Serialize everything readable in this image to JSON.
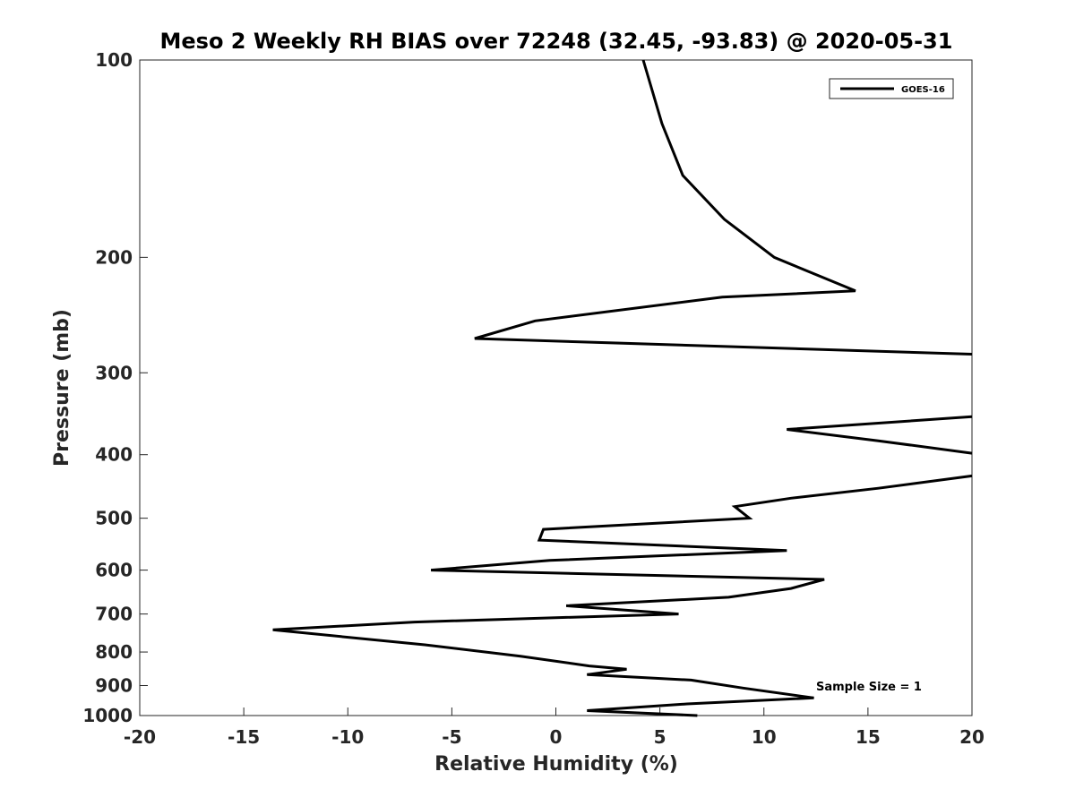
{
  "chart_data": {
    "type": "line",
    "title": "Meso 2 Weekly RH BIAS over 72248 (32.45, -93.83) @ 2020-05-31",
    "xlabel": "Relative Humidity (%)",
    "ylabel": "Pressure (mb)",
    "xlim": [
      -20,
      20
    ],
    "ylim": [
      1000,
      100
    ],
    "y_scale": "log",
    "y_direction": "reversed",
    "x_ticks": [
      "-20",
      "-15",
      "-10",
      "-5",
      "0",
      "5",
      "10",
      "15",
      "20"
    ],
    "y_ticks": [
      "100",
      "200",
      "300",
      "400",
      "500",
      "600",
      "700",
      "800",
      "900",
      "1000"
    ],
    "legend": {
      "position": "top-right",
      "entries": [
        "GOES-16"
      ]
    },
    "annotation": "Sample Size = 1",
    "grid": false,
    "series": [
      {
        "name": "GOES-16",
        "color": "#000000",
        "segments": [
          [
            [
              4.2,
              100
            ],
            [
              5.1,
              125
            ],
            [
              6.1,
              150
            ],
            [
              8.1,
              175
            ],
            [
              10.5,
              200
            ],
            [
              14.4,
              225
            ],
            [
              8.0,
              230
            ],
            [
              -1.0,
              250
            ],
            [
              -3.9,
              266
            ],
            [
              20,
              281
            ]
          ],
          [
            [
              20,
              350
            ],
            [
              11.1,
              366
            ],
            [
              15.5,
              381
            ],
            [
              20,
              398
            ]
          ],
          [
            [
              20,
              431
            ],
            [
              15.5,
              450
            ],
            [
              11.3,
              466
            ],
            [
              8.6,
              480
            ],
            [
              9.3,
              500
            ],
            [
              -0.6,
              520
            ],
            [
              -0.8,
              540
            ],
            [
              11.1,
              560
            ],
            [
              -0.3,
              580
            ],
            [
              -6.0,
              600
            ],
            [
              12.9,
              620
            ],
            [
              11.3,
              640
            ],
            [
              8.3,
              660
            ],
            [
              0.5,
              680
            ],
            [
              5.9,
              700
            ],
            [
              -6.8,
              720
            ],
            [
              -13.6,
              740
            ],
            [
              -6.3,
              780
            ],
            [
              -1.7,
              812
            ],
            [
              1.6,
              840
            ],
            [
              3.4,
              850
            ],
            [
              1.5,
              866
            ],
            [
              6.5,
              883
            ],
            [
              9.0,
              908
            ],
            [
              12.4,
              940
            ],
            [
              6.3,
              960
            ],
            [
              1.5,
              983
            ],
            [
              6.8,
              1000
            ]
          ]
        ]
      }
    ]
  }
}
